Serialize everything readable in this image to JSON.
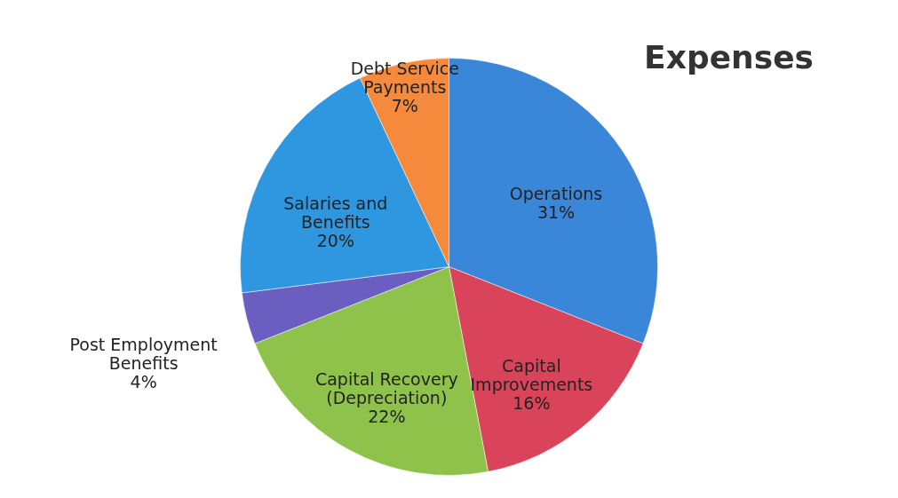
{
  "chart_data": {
    "type": "pie",
    "title": "Expenses",
    "categories": [
      "Operations",
      "Capital Improvements",
      "Capital Recovery (Depreciation)",
      "Post Employment Benefits",
      "Salaries and Benefits",
      "Debt Service Payments"
    ],
    "values": [
      31,
      16,
      22,
      4,
      20,
      7
    ],
    "colors": [
      "#3a86d8",
      "#d9445a",
      "#8fc24a",
      "#6a5fc0",
      "#2f96e0",
      "#f58a3c"
    ],
    "value_labels": [
      "31%",
      "16%",
      "22%",
      "4%",
      "20%",
      "7%"
    ],
    "data_labels": true
  }
}
